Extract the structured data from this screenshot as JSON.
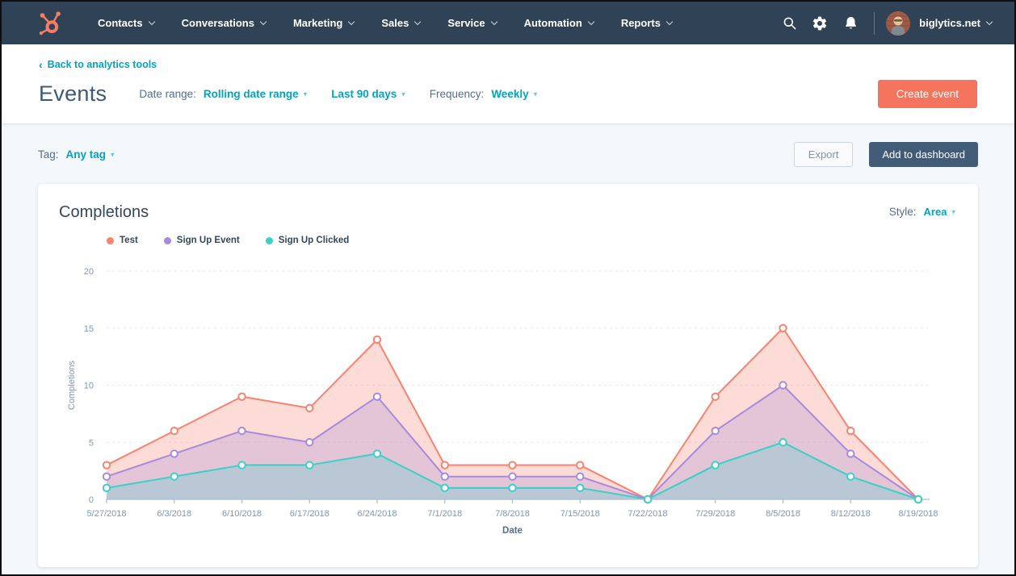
{
  "nav": {
    "items": [
      {
        "label": "Contacts"
      },
      {
        "label": "Conversations"
      },
      {
        "label": "Marketing"
      },
      {
        "label": "Sales"
      },
      {
        "label": "Service"
      },
      {
        "label": "Automation"
      },
      {
        "label": "Reports"
      }
    ],
    "account_label": "biglytics.net",
    "colors": {
      "bar_bg": "#304356",
      "logo": "#fb7c62"
    }
  },
  "header": {
    "back_link": "Back to analytics tools",
    "back_arrow": "‹",
    "title": "Events",
    "date_range_label": "Date range:",
    "date_range_type": "Rolling date range",
    "date_range_value": "Last 90 days",
    "frequency_label": "Frequency:",
    "frequency_value": "Weekly",
    "create_button": "Create event",
    "colors": {
      "link": "#00a4bd",
      "create_button_bg": "#f4745e"
    }
  },
  "toolbar": {
    "tag_label": "Tag:",
    "tag_value": "Any tag",
    "export_button": "Export",
    "add_to_dashboard_button": "Add to dashboard",
    "colors": {
      "add_to_dashboard_bg": "#425b76",
      "export_text": "#7e95ab"
    }
  },
  "card": {
    "title": "Completions",
    "style_label": "Style:",
    "style_value": "Area"
  },
  "chart_data": {
    "type": "area",
    "title": "Completions",
    "xlabel": "Date",
    "ylabel": "Completions",
    "ylim": [
      0,
      20
    ],
    "yticks": [
      0,
      5,
      10,
      15,
      20
    ],
    "grid": "dashed-horizontal",
    "legend_position": "top-left",
    "categories": [
      "5/27/2018",
      "6/3/2018",
      "6/10/2018",
      "6/17/2018",
      "6/24/2018",
      "7/1/2018",
      "7/8/2018",
      "7/15/2018",
      "7/22/2018",
      "7/29/2018",
      "8/5/2018",
      "8/12/2018",
      "8/19/2018"
    ],
    "series": [
      {
        "name": "Test",
        "color": "#f7836f",
        "fill": "rgba(247,131,111,0.28)",
        "values": [
          3,
          6,
          9,
          8,
          14,
          3,
          3,
          3,
          0,
          9,
          15,
          6,
          0
        ]
      },
      {
        "name": "Sign Up Event",
        "color": "#a78bdb",
        "fill": "rgba(167,139,219,0.28)",
        "values": [
          2,
          4,
          6,
          5,
          9,
          2,
          2,
          2,
          0,
          6,
          10,
          4,
          0
        ]
      },
      {
        "name": "Sign Up Clicked",
        "color": "#3bd0c6",
        "fill": "rgba(59,208,198,0.25)",
        "values": [
          1,
          2,
          3,
          3,
          4,
          1,
          1,
          1,
          0,
          3,
          5,
          2,
          0
        ]
      }
    ],
    "axis_color": "#a9bdd1",
    "gridline_color": "#e4e9f2",
    "tick_label_color": "#7c98b6",
    "axis_title_color": "#516f90"
  }
}
